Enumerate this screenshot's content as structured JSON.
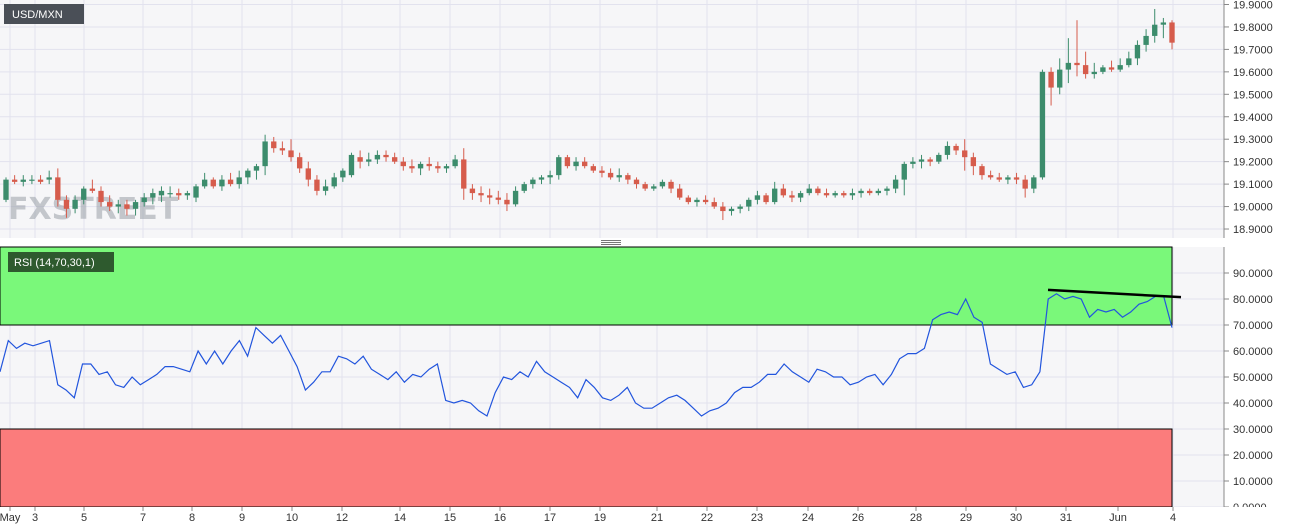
{
  "price_panel": {
    "symbol": "USD/MXN",
    "watermark": "FXSTREET",
    "y_ticks": [
      "19.9000",
      "19.8000",
      "19.7000",
      "19.6000",
      "19.5000",
      "19.4000",
      "19.3000",
      "19.2000",
      "19.1000",
      "19.0000",
      "18.9000"
    ]
  },
  "rsi_panel": {
    "label": "RSI (14,70,30,1)",
    "y_ticks": [
      "90.0000",
      "80.0000",
      "70.0000",
      "60.0000",
      "50.0000",
      "40.0000",
      "30.0000",
      "20.0000",
      "10.0000",
      "0.0000"
    ]
  },
  "x_axis": {
    "ticks": [
      "May",
      "3",
      "5",
      "7",
      "8",
      "9",
      "10",
      "12",
      "14",
      "15",
      "16",
      "17",
      "19",
      "21",
      "22",
      "23",
      "24",
      "26",
      "28",
      "29",
      "30",
      "31",
      "Jun",
      "4"
    ]
  },
  "colors": {
    "up_candle": "#3c8c6c",
    "down_candle": "#d65c4c",
    "rsi_line": "#2255dd",
    "overbought_zone": "#7af87a",
    "oversold_zone": "#fb7c7c",
    "grid": "#e2e2ee",
    "trendline": "#000000"
  },
  "chart_data": [
    {
      "type": "candlestick",
      "title": "USD/MXN",
      "ylim": [
        18.86,
        19.92
      ],
      "candles": [
        [
          19.03,
          19.13,
          19.02,
          19.12
        ],
        [
          19.12,
          19.14,
          19.1,
          19.11
        ],
        [
          19.11,
          19.14,
          19.09,
          19.12
        ],
        [
          19.12,
          19.14,
          19.1,
          19.12
        ],
        [
          19.12,
          19.14,
          19.1,
          19.11
        ],
        [
          19.12,
          19.16,
          19.1,
          19.13
        ],
        [
          19.13,
          19.17,
          19.0,
          19.03
        ],
        [
          19.03,
          19.05,
          18.95,
          18.99
        ],
        [
          18.99,
          19.05,
          18.97,
          19.03
        ],
        [
          19.03,
          19.09,
          19.01,
          19.08
        ],
        [
          19.08,
          19.12,
          19.06,
          19.07
        ],
        [
          19.07,
          19.09,
          19.0,
          19.02
        ],
        [
          19.02,
          19.05,
          18.98,
          19.0
        ],
        [
          19.0,
          19.03,
          18.97,
          19.01
        ],
        [
          19.01,
          19.03,
          18.96,
          18.99
        ],
        [
          18.99,
          19.03,
          18.96,
          19.02
        ],
        [
          19.02,
          19.06,
          19.0,
          19.04
        ],
        [
          19.04,
          19.08,
          19.01,
          19.06
        ],
        [
          19.05,
          19.09,
          19.02,
          19.07
        ],
        [
          19.06,
          19.09,
          19.04,
          19.06
        ],
        [
          19.06,
          19.08,
          19.03,
          19.05
        ],
        [
          19.05,
          19.07,
          19.03,
          19.06
        ],
        [
          19.04,
          19.1,
          19.02,
          19.09
        ],
        [
          19.09,
          19.15,
          19.08,
          19.12
        ],
        [
          19.12,
          19.13,
          19.08,
          19.09
        ],
        [
          19.09,
          19.14,
          19.07,
          19.12
        ],
        [
          19.12,
          19.15,
          19.09,
          19.1
        ],
        [
          19.1,
          19.16,
          19.08,
          19.13
        ],
        [
          19.13,
          19.17,
          19.1,
          19.16
        ],
        [
          19.16,
          19.19,
          19.12,
          19.18
        ],
        [
          19.18,
          19.32,
          19.14,
          19.29
        ],
        [
          19.29,
          19.31,
          19.24,
          19.26
        ],
        [
          19.26,
          19.29,
          19.23,
          19.25
        ],
        [
          19.25,
          19.3,
          19.2,
          19.22
        ],
        [
          19.22,
          19.24,
          19.15,
          19.17
        ],
        [
          19.17,
          19.2,
          19.09,
          19.12
        ],
        [
          19.12,
          19.14,
          19.05,
          19.07
        ],
        [
          19.07,
          19.12,
          19.05,
          19.09
        ],
        [
          19.09,
          19.15,
          19.08,
          19.13
        ],
        [
          19.13,
          19.17,
          19.11,
          19.16
        ],
        [
          19.14,
          19.24,
          19.13,
          19.23
        ],
        [
          19.22,
          19.25,
          19.17,
          19.2
        ],
        [
          19.2,
          19.24,
          19.18,
          19.21
        ],
        [
          19.21,
          19.25,
          19.19,
          19.23
        ],
        [
          19.23,
          19.25,
          19.2,
          19.22
        ],
        [
          19.22,
          19.24,
          19.19,
          19.2
        ],
        [
          19.2,
          19.22,
          19.16,
          19.18
        ],
        [
          19.18,
          19.21,
          19.15,
          19.17
        ],
        [
          19.17,
          19.2,
          19.14,
          19.19
        ],
        [
          19.19,
          19.22,
          19.16,
          19.18
        ],
        [
          19.18,
          19.2,
          19.15,
          19.17
        ],
        [
          19.17,
          19.19,
          19.15,
          19.18
        ],
        [
          19.18,
          19.23,
          19.17,
          19.21
        ],
        [
          19.21,
          19.26,
          19.03,
          19.08
        ],
        [
          19.08,
          19.1,
          19.03,
          19.06
        ],
        [
          19.06,
          19.09,
          19.02,
          19.05
        ],
        [
          19.05,
          19.08,
          19.01,
          19.04
        ],
        [
          19.04,
          19.07,
          19.01,
          19.03
        ],
        [
          19.03,
          19.06,
          18.98,
          19.01
        ],
        [
          19.01,
          19.09,
          19.0,
          19.07
        ],
        [
          19.07,
          19.11,
          19.06,
          19.1
        ],
        [
          19.1,
          19.13,
          19.08,
          19.12
        ],
        [
          19.12,
          19.14,
          19.1,
          19.13
        ],
        [
          19.13,
          19.16,
          19.1,
          19.14
        ],
        [
          19.14,
          19.23,
          19.12,
          19.22
        ],
        [
          19.22,
          19.23,
          19.17,
          19.18
        ],
        [
          19.18,
          19.22,
          19.16,
          19.2
        ],
        [
          19.2,
          19.22,
          19.17,
          19.18
        ],
        [
          19.18,
          19.19,
          19.15,
          19.16
        ],
        [
          19.16,
          19.18,
          19.13,
          19.15
        ],
        [
          19.15,
          19.17,
          19.12,
          19.13
        ],
        [
          19.13,
          19.17,
          19.11,
          19.14
        ],
        [
          19.14,
          19.15,
          19.1,
          19.12
        ],
        [
          19.12,
          19.13,
          19.08,
          19.1
        ],
        [
          19.1,
          19.11,
          19.07,
          19.08
        ],
        [
          19.08,
          19.1,
          19.07,
          19.09
        ],
        [
          19.09,
          19.12,
          19.08,
          19.11
        ],
        [
          19.11,
          19.12,
          19.06,
          19.08
        ],
        [
          19.08,
          19.1,
          19.03,
          19.04
        ],
        [
          19.04,
          19.05,
          19.01,
          19.02
        ],
        [
          19.02,
          19.04,
          19.0,
          19.03
        ],
        [
          19.03,
          19.05,
          19.01,
          19.02
        ],
        [
          19.02,
          19.04,
          18.99,
          19.0
        ],
        [
          19.0,
          19.02,
          18.94,
          18.98
        ],
        [
          18.98,
          19.0,
          18.96,
          18.99
        ],
        [
          18.99,
          19.01,
          18.97,
          19.0
        ],
        [
          19.0,
          19.04,
          18.98,
          19.03
        ],
        [
          19.03,
          19.07,
          19.01,
          19.05
        ],
        [
          19.05,
          19.06,
          19.01,
          19.02
        ],
        [
          19.02,
          19.11,
          19.01,
          19.08
        ],
        [
          19.08,
          19.1,
          19.04,
          19.05
        ],
        [
          19.05,
          19.07,
          19.02,
          19.04
        ],
        [
          19.04,
          19.07,
          19.02,
          19.06
        ],
        [
          19.06,
          19.1,
          19.05,
          19.08
        ],
        [
          19.08,
          19.09,
          19.05,
          19.06
        ],
        [
          19.06,
          19.08,
          19.04,
          19.05
        ],
        [
          19.05,
          19.07,
          19.04,
          19.06
        ],
        [
          19.06,
          19.07,
          19.04,
          19.05
        ],
        [
          19.05,
          19.08,
          19.03,
          19.06
        ],
        [
          19.06,
          19.08,
          19.04,
          19.07
        ],
        [
          19.07,
          19.08,
          19.05,
          19.06
        ],
        [
          19.06,
          19.08,
          19.05,
          19.07
        ],
        [
          19.07,
          19.09,
          19.05,
          19.08
        ],
        [
          19.08,
          19.14,
          19.06,
          19.12
        ],
        [
          19.12,
          19.2,
          19.05,
          19.19
        ],
        [
          19.19,
          19.22,
          19.17,
          19.2
        ],
        [
          19.2,
          19.23,
          19.17,
          19.21
        ],
        [
          19.21,
          19.22,
          19.18,
          19.2
        ],
        [
          19.2,
          19.24,
          19.19,
          19.23
        ],
        [
          19.23,
          19.29,
          19.21,
          19.27
        ],
        [
          19.27,
          19.28,
          19.23,
          19.25
        ],
        [
          19.25,
          19.3,
          19.16,
          19.22
        ],
        [
          19.22,
          19.24,
          19.14,
          19.18
        ],
        [
          19.18,
          19.19,
          19.12,
          19.14
        ],
        [
          19.14,
          19.16,
          19.12,
          19.13
        ],
        [
          19.13,
          19.15,
          19.11,
          19.12
        ],
        [
          19.12,
          19.14,
          19.1,
          19.13
        ],
        [
          19.13,
          19.15,
          19.1,
          19.12
        ],
        [
          19.12,
          19.14,
          19.04,
          19.08
        ],
        [
          19.08,
          19.14,
          19.06,
          19.13
        ],
        [
          19.13,
          19.61,
          19.12,
          19.6
        ],
        [
          19.6,
          19.62,
          19.45,
          19.53
        ],
        [
          19.53,
          19.66,
          19.5,
          19.61
        ],
        [
          19.61,
          19.75,
          19.55,
          19.64
        ],
        [
          19.64,
          19.83,
          19.58,
          19.63
        ],
        [
          19.63,
          19.69,
          19.57,
          19.59
        ],
        [
          19.59,
          19.64,
          19.57,
          19.6
        ],
        [
          19.6,
          19.63,
          19.59,
          19.62
        ],
        [
          19.62,
          19.65,
          19.6,
          19.61
        ],
        [
          19.61,
          19.66,
          19.6,
          19.63
        ],
        [
          19.63,
          19.69,
          19.62,
          19.66
        ],
        [
          19.66,
          19.74,
          19.63,
          19.72
        ],
        [
          19.72,
          19.79,
          19.69,
          19.76
        ],
        [
          19.76,
          19.88,
          19.73,
          19.81
        ],
        [
          19.81,
          19.84,
          19.75,
          19.82
        ],
        [
          19.82,
          19.83,
          19.7,
          19.73
        ]
      ]
    },
    {
      "type": "line",
      "title": "RSI (14,70,30,1)",
      "ylim": [
        0,
        100
      ],
      "overbought": 70,
      "oversold": 30,
      "values": [
        52,
        64,
        61,
        63,
        62,
        63,
        64,
        47,
        45,
        42,
        55,
        55,
        51,
        52,
        47,
        46,
        50,
        47,
        49,
        51,
        54,
        54,
        53,
        52,
        60,
        55,
        60,
        55,
        60,
        64,
        58,
        69,
        66,
        63,
        66,
        60,
        54,
        45,
        48,
        52,
        52,
        58,
        57,
        55,
        58,
        53,
        51,
        49,
        52,
        48,
        51,
        50,
        53,
        55,
        41,
        40,
        41,
        40,
        37,
        35,
        44,
        50,
        49,
        52,
        50,
        56,
        52,
        50,
        48,
        46,
        42,
        49,
        46,
        42,
        41,
        43,
        46,
        40,
        38,
        38,
        40,
        42,
        43,
        41,
        38,
        35,
        37,
        38,
        40,
        44,
        46,
        46,
        48,
        51,
        51,
        55,
        52,
        50,
        48,
        53,
        52,
        50,
        50,
        47,
        48,
        50,
        51,
        47,
        51,
        57,
        59,
        59,
        61,
        72,
        74,
        75,
        74,
        80,
        73,
        71,
        55,
        53,
        51,
        52,
        46,
        47,
        52,
        80,
        82,
        80,
        81,
        80,
        73,
        76,
        75,
        76,
        73,
        75,
        78,
        79,
        81,
        81,
        69
      ]
    }
  ]
}
